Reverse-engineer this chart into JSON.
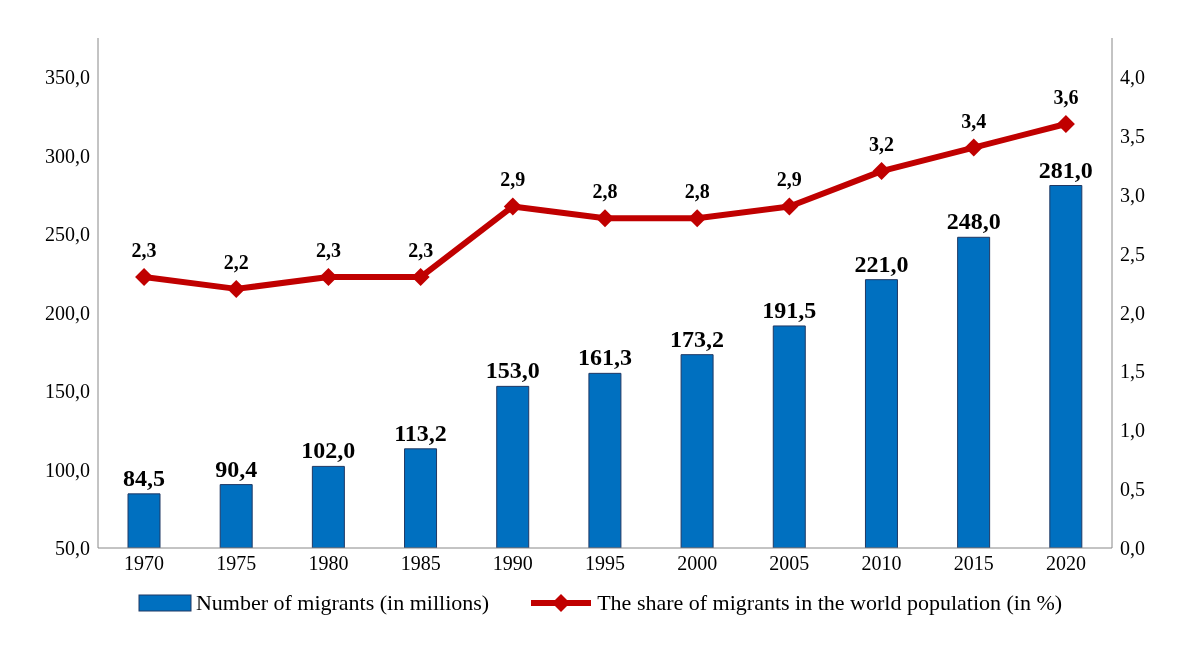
{
  "chart_data": {
    "type": "bar",
    "categories": [
      "1970",
      "1975",
      "1980",
      "1985",
      "1990",
      "1995",
      "2000",
      "2005",
      "2010",
      "2015",
      "2020"
    ],
    "series": [
      {
        "name": "Number of migrants (in millions)",
        "color": "#0070c0",
        "values": [
          84.5,
          90.4,
          102.0,
          113.2,
          153.0,
          161.3,
          173.2,
          191.5,
          221.0,
          248.0,
          281.0
        ],
        "value_labels": [
          "84,5",
          "90,4",
          "102,0",
          "113,2",
          "153,0",
          "161,3",
          "173,2",
          "191,5",
          "221,0",
          "248,0",
          "281,0"
        ]
      },
      {
        "name": "The share of migrants in the world population (in %)",
        "type": "line",
        "axis": "y2",
        "color": "#c00000",
        "marker": "diamond",
        "values": [
          2.3,
          2.2,
          2.3,
          2.3,
          2.9,
          2.8,
          2.8,
          2.9,
          3.2,
          3.4,
          3.6
        ],
        "value_labels": [
          "2,3",
          "2,2",
          "2,3",
          "2,3",
          "2,9",
          "2,8",
          "2,8",
          "2,9",
          "3,2",
          "3,4",
          "3,6"
        ]
      }
    ],
    "ylim": [
      50,
      375
    ],
    "yticks": [
      {
        "value": 50,
        "label": "50,0"
      },
      {
        "value": 100,
        "label": "100,0"
      },
      {
        "value": 150,
        "label": "150,0"
      },
      {
        "value": 200,
        "label": "200,0"
      },
      {
        "value": 250,
        "label": "250,0"
      },
      {
        "value": 300,
        "label": "300,0"
      },
      {
        "value": 350,
        "label": "350,0"
      }
    ],
    "y2lim": [
      0,
      4.33
    ],
    "y2ticks": [
      {
        "value": 0,
        "label": "0,0"
      },
      {
        "value": 0.5,
        "label": "0,5"
      },
      {
        "value": 1,
        "label": "1,0"
      },
      {
        "value": 1.5,
        "label": "1,5"
      },
      {
        "value": 2,
        "label": "2,0"
      },
      {
        "value": 2.5,
        "label": "2,5"
      },
      {
        "value": 3,
        "label": "3,0"
      },
      {
        "value": 3.5,
        "label": "3,5"
      },
      {
        "value": 4,
        "label": "4,0"
      }
    ],
    "grid": false,
    "legend": "bottom"
  }
}
